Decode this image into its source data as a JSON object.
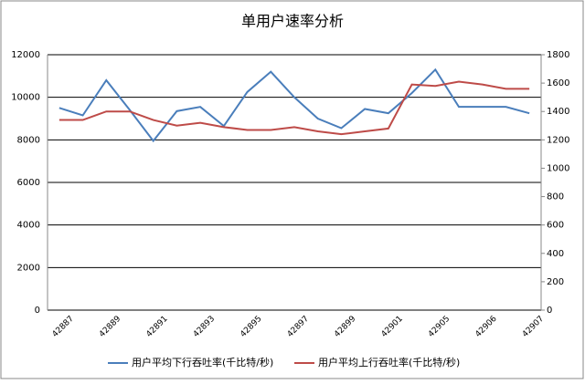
{
  "chart_data": {
    "type": "line",
    "title": "单用户速率分析",
    "categories": [
      "42887",
      null,
      "42889",
      null,
      "42891",
      null,
      "42893",
      null,
      "42895",
      null,
      "42897",
      null,
      "42899",
      null,
      "42901",
      null,
      "42905",
      null,
      "42906",
      null,
      "42907"
    ],
    "series": [
      {
        "name": "用户平均下行吞吐率(千比特/秒)",
        "color": "#4a7ebb",
        "axis": "y",
        "values": [
          9500,
          9150,
          10800,
          9400,
          7950,
          9350,
          9550,
          8650,
          10250,
          11200,
          10000,
          9000,
          8550,
          9450,
          9250,
          10200,
          11300,
          9550,
          9550,
          9550,
          9250
        ]
      },
      {
        "name": "用户平均上行吞吐率(千比特/秒)",
        "color": "#be4b48",
        "axis": "y2",
        "values": [
          1340,
          1340,
          1400,
          1400,
          1340,
          1300,
          1320,
          1290,
          1270,
          1270,
          1290,
          1260,
          1240,
          1260,
          1280,
          1590,
          1580,
          1610,
          1590,
          1560,
          1560
        ]
      }
    ],
    "ylim": [
      0,
      12000
    ],
    "yticks": [
      0,
      2000,
      4000,
      6000,
      8000,
      10000,
      12000
    ],
    "y2lim": [
      0,
      1800
    ],
    "y2ticks": [
      0,
      200,
      400,
      600,
      800,
      1000,
      1200,
      1400,
      1600,
      1800
    ],
    "grid": true,
    "legend": "bottom"
  }
}
